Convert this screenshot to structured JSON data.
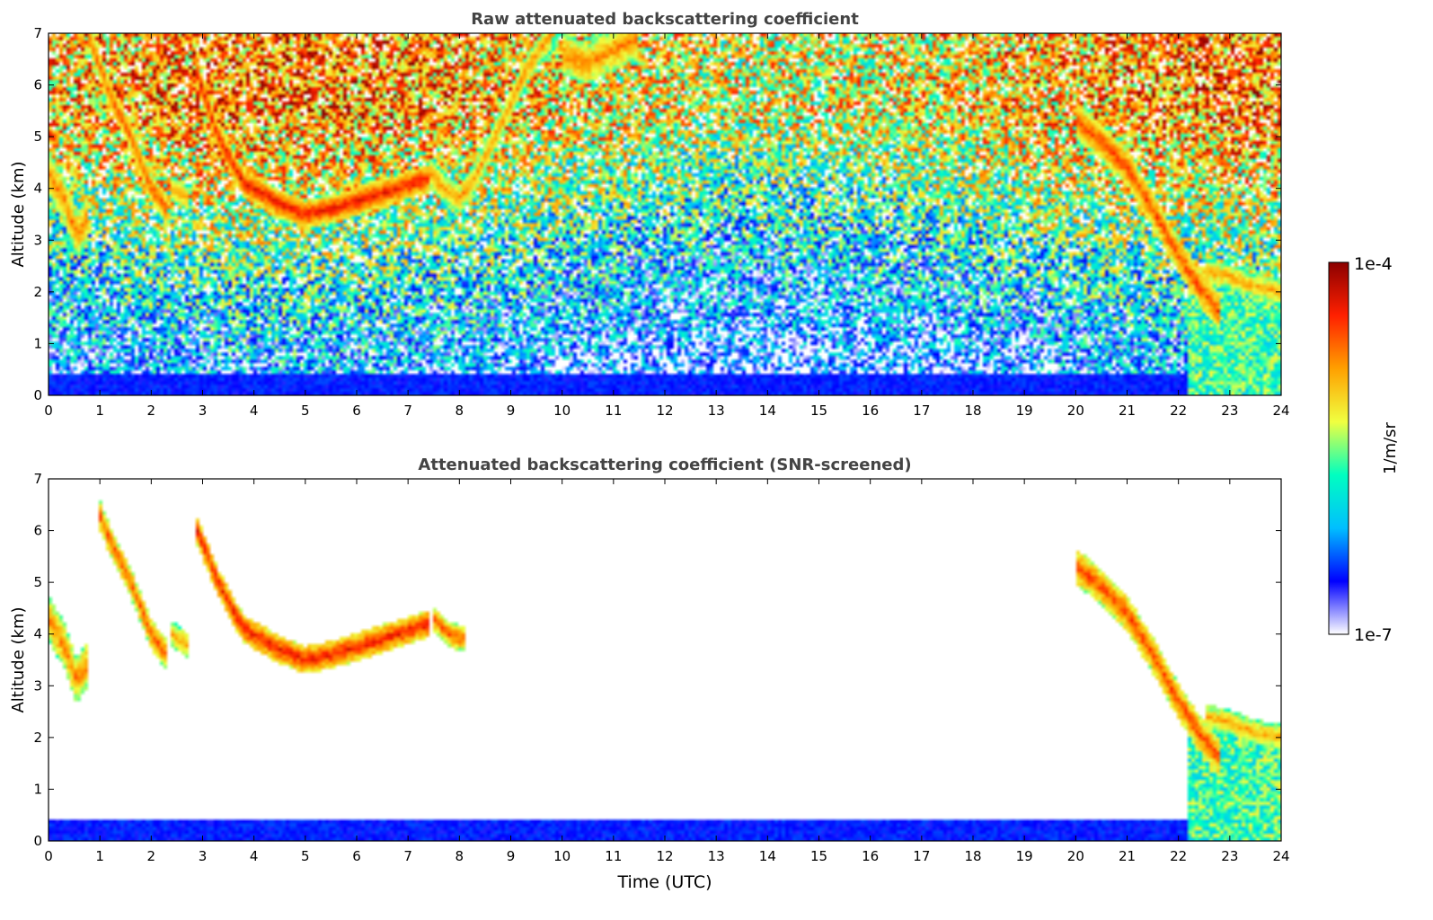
{
  "chart_data": [
    {
      "type": "heatmap",
      "title": "Raw attenuated backscattering coefficient",
      "xlabel": "",
      "ylabel": "Altitude (km)",
      "xlim": [
        0,
        24
      ],
      "ylim": [
        0,
        7
      ],
      "xticks": [
        "0",
        "1",
        "2",
        "3",
        "4",
        "5",
        "6",
        "7",
        "8",
        "9",
        "10",
        "11",
        "12",
        "13",
        "14",
        "15",
        "16",
        "17",
        "18",
        "19",
        "20",
        "21",
        "22",
        "23",
        "24"
      ],
      "yticks": [
        "0",
        "1",
        "2",
        "3",
        "4",
        "5",
        "6",
        "7"
      ],
      "noise": "high",
      "features": [
        {
          "kind": "cloud-layer",
          "points": [
            [
              0.0,
              4.3
            ],
            [
              0.3,
              3.8
            ],
            [
              0.55,
              3.1
            ],
            [
              0.75,
              3.4
            ]
          ],
          "thickness": 0.9,
          "intensity": 0.75
        },
        {
          "kind": "cloud-layer",
          "points": [
            [
              0.8,
              6.9
            ],
            [
              1.2,
              5.8
            ],
            [
              1.6,
              5.0
            ],
            [
              2.0,
              4.0
            ],
            [
              2.3,
              3.6
            ]
          ],
          "thickness": 0.6,
          "intensity": 0.8
        },
        {
          "kind": "cloud-layer",
          "points": [
            [
              2.4,
              4.0
            ],
            [
              2.7,
              3.8
            ]
          ],
          "thickness": 0.5,
          "intensity": 0.7
        },
        {
          "kind": "cloud-layer",
          "points": [
            [
              2.9,
              6.2
            ],
            [
              3.3,
              5.0
            ],
            [
              3.8,
              4.1
            ],
            [
              4.5,
              3.7
            ],
            [
              5.0,
              3.5
            ],
            [
              5.5,
              3.6
            ],
            [
              6.0,
              3.75
            ],
            [
              6.8,
              4.0
            ],
            [
              7.4,
              4.2
            ]
          ],
          "thickness": 0.55,
          "intensity": 0.88
        },
        {
          "kind": "cloud-layer",
          "points": [
            [
              7.4,
              4.3
            ],
            [
              7.7,
              4.0
            ],
            [
              8.0,
              3.8
            ],
            [
              8.3,
              4.2
            ],
            [
              8.8,
              5.2
            ],
            [
              9.3,
              6.3
            ],
            [
              9.8,
              7.0
            ]
          ],
          "thickness": 0.6,
          "intensity": 0.72
        },
        {
          "kind": "cloud-layer",
          "points": [
            [
              10.0,
              6.6
            ],
            [
              10.5,
              6.4
            ],
            [
              11.0,
              6.7
            ],
            [
              11.5,
              6.9
            ]
          ],
          "thickness": 0.8,
          "intensity": 0.75
        },
        {
          "kind": "cloud-layer",
          "points": [
            [
              20.0,
              5.3
            ],
            [
              20.4,
              5.0
            ],
            [
              21.0,
              4.4
            ],
            [
              21.5,
              3.6
            ],
            [
              22.0,
              2.7
            ],
            [
              22.4,
              2.1
            ],
            [
              22.8,
              1.6
            ]
          ],
          "thickness": 0.7,
          "intensity": 0.82
        },
        {
          "kind": "cloud-layer",
          "points": [
            [
              22.5,
              2.4
            ],
            [
              23.0,
              2.3
            ],
            [
              23.5,
              2.1
            ],
            [
              24.0,
              2.0
            ]
          ],
          "thickness": 0.5,
          "intensity": 0.7
        },
        {
          "kind": "boundary-layer",
          "top": 0.45,
          "x_range": [
            0,
            24
          ],
          "intensity": 0.12
        },
        {
          "kind": "precip-column",
          "x_range": [
            22.2,
            24.0
          ],
          "top": 2.2,
          "intensity": 0.5
        }
      ]
    },
    {
      "type": "heatmap",
      "title": "Attenuated backscattering coefficient (SNR-screened)",
      "xlabel": "Time (UTC)",
      "ylabel": "Altitude (km)",
      "xlim": [
        0,
        24
      ],
      "ylim": [
        0,
        7
      ],
      "xticks": [
        "0",
        "1",
        "2",
        "3",
        "4",
        "5",
        "6",
        "7",
        "8",
        "9",
        "10",
        "11",
        "12",
        "13",
        "14",
        "15",
        "16",
        "17",
        "18",
        "19",
        "20",
        "21",
        "22",
        "23",
        "24"
      ],
      "yticks": [
        "0",
        "1",
        "2",
        "3",
        "4",
        "5",
        "6",
        "7"
      ],
      "noise": "screened",
      "features": [
        {
          "kind": "cloud-layer",
          "points": [
            [
              0.0,
              4.3
            ],
            [
              0.3,
              3.8
            ],
            [
              0.55,
              3.1
            ],
            [
              0.75,
              3.4
            ]
          ],
          "thickness": 0.9,
          "intensity": 0.75
        },
        {
          "kind": "cloud-layer",
          "points": [
            [
              1.0,
              6.3
            ],
            [
              1.2,
              5.8
            ],
            [
              1.6,
              5.0
            ],
            [
              2.0,
              4.0
            ],
            [
              2.3,
              3.6
            ]
          ],
          "thickness": 0.6,
          "intensity": 0.8
        },
        {
          "kind": "cloud-layer",
          "points": [
            [
              2.4,
              4.0
            ],
            [
              2.7,
              3.8
            ]
          ],
          "thickness": 0.5,
          "intensity": 0.7
        },
        {
          "kind": "cloud-layer",
          "points": [
            [
              2.9,
              6.0
            ],
            [
              3.3,
              5.0
            ],
            [
              3.8,
              4.1
            ],
            [
              4.5,
              3.7
            ],
            [
              5.0,
              3.5
            ],
            [
              5.5,
              3.6
            ],
            [
              6.0,
              3.75
            ],
            [
              6.8,
              4.0
            ],
            [
              7.4,
              4.2
            ]
          ],
          "thickness": 0.55,
          "intensity": 0.88
        },
        {
          "kind": "cloud-layer",
          "points": [
            [
              7.5,
              4.3
            ],
            [
              7.8,
              4.0
            ],
            [
              8.1,
              3.9
            ]
          ],
          "thickness": 0.5,
          "intensity": 0.8
        },
        {
          "kind": "cloud-layer",
          "points": [
            [
              20.0,
              5.3
            ],
            [
              20.4,
              5.0
            ],
            [
              21.0,
              4.4
            ],
            [
              21.5,
              3.6
            ],
            [
              22.0,
              2.7
            ],
            [
              22.4,
              2.1
            ],
            [
              22.8,
              1.6
            ]
          ],
          "thickness": 0.7,
          "intensity": 0.82
        },
        {
          "kind": "cloud-layer",
          "points": [
            [
              22.5,
              2.4
            ],
            [
              23.0,
              2.3
            ],
            [
              23.5,
              2.1
            ],
            [
              24.0,
              2.0
            ]
          ],
          "thickness": 0.5,
          "intensity": 0.7
        },
        {
          "kind": "boundary-layer",
          "top": 0.45,
          "x_range": [
            0,
            24
          ],
          "intensity": 0.12
        },
        {
          "kind": "precip-column",
          "x_range": [
            22.2,
            24.0
          ],
          "top": 2.2,
          "intensity": 0.5
        }
      ]
    }
  ],
  "colorbar": {
    "max_label": "1e-4",
    "min_label": "1e-7",
    "unit_label": "1/m/sr",
    "colormap": [
      "#ffffff",
      "#0000ff",
      "#00bfff",
      "#00ffc0",
      "#f0ff40",
      "#ffa000",
      "#ff2000",
      "#8b0000"
    ]
  },
  "colors": {
    "title": "#444444",
    "axis": "#000000",
    "background": "#ffffff"
  }
}
